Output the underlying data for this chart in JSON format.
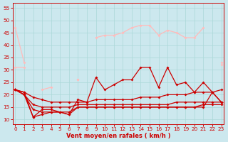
{
  "bg": "#cce8ee",
  "grid_color": "#aad8d8",
  "xlabel": "Vent moyen/en rafales ( km/h )",
  "tick_color": "#cc0000",
  "ylim": [
    8,
    57
  ],
  "yticks": [
    10,
    15,
    20,
    25,
    30,
    35,
    40,
    45,
    50,
    55
  ],
  "xlim": [
    -0.3,
    23.3
  ],
  "xticks": [
    0,
    1,
    2,
    3,
    4,
    5,
    6,
    7,
    8,
    9,
    10,
    11,
    12,
    13,
    14,
    15,
    16,
    17,
    18,
    19,
    20,
    21,
    22,
    23
  ],
  "pink_top_x": [
    0,
    1,
    2,
    3,
    4,
    5,
    6,
    7,
    8,
    9,
    10,
    11,
    12,
    13,
    14,
    15,
    16,
    17,
    18,
    19,
    20,
    21,
    22,
    23
  ],
  "pink_top_y": [
    47,
    33,
    null,
    null,
    null,
    null,
    null,
    null,
    null,
    null,
    null,
    null,
    null,
    null,
    null,
    null,
    null,
    null,
    null,
    null,
    null,
    null,
    null,
    null
  ],
  "pink_band_top_x": [
    0,
    1,
    2,
    3,
    4,
    5,
    6,
    7,
    8,
    9,
    10,
    11,
    12,
    13,
    14,
    15,
    16,
    17,
    18,
    19,
    20,
    21,
    22,
    23
  ],
  "pink_band_top_y": [
    31,
    31,
    null,
    null,
    null,
    null,
    null,
    26,
    null,
    43,
    44,
    44,
    45,
    47,
    48,
    48,
    44,
    46,
    45,
    43,
    43,
    47,
    null,
    33
  ],
  "pink_band_lower_x": [
    0,
    1,
    2,
    3,
    4,
    5,
    6,
    7,
    8,
    9,
    10,
    11,
    12,
    13,
    14,
    15,
    16,
    17,
    18,
    19,
    20,
    21,
    22,
    23
  ],
  "pink_band_lower_y": [
    22,
    21,
    null,
    null,
    null,
    null,
    null,
    null,
    null,
    null,
    null,
    null,
    null,
    null,
    null,
    null,
    null,
    null,
    null,
    null,
    null,
    null,
    null,
    32
  ],
  "pink_mid_x": [
    0,
    1,
    2,
    3,
    4,
    5,
    6,
    7,
    8,
    9,
    10,
    11,
    12,
    13,
    14,
    15,
    16,
    17,
    18,
    19,
    20,
    21,
    22,
    23
  ],
  "pink_mid_y": [
    22,
    21,
    null,
    22,
    23,
    null,
    null,
    26,
    null,
    null,
    null,
    null,
    null,
    null,
    null,
    null,
    null,
    null,
    null,
    null,
    null,
    null,
    null,
    null
  ],
  "red_jagged_x": [
    0,
    1,
    2,
    3,
    4,
    5,
    6,
    7,
    8,
    9,
    10,
    11,
    12,
    13,
    14,
    15,
    16,
    17,
    18,
    19,
    20,
    21,
    22,
    23
  ],
  "red_jagged_y": [
    22,
    21,
    11,
    14,
    14,
    13,
    12,
    18,
    17,
    27,
    22,
    24,
    26,
    26,
    31,
    31,
    23,
    31,
    24,
    25,
    21,
    25,
    21,
    17
  ],
  "red_rise1_x": [
    0,
    1,
    2,
    3,
    4,
    5,
    6,
    7,
    8,
    9,
    10,
    11,
    12,
    13,
    14,
    15,
    16,
    17,
    18,
    19,
    20,
    21,
    22,
    23
  ],
  "red_rise1_y": [
    22,
    21,
    19,
    18,
    17,
    17,
    17,
    17,
    17,
    18,
    18,
    18,
    18,
    18,
    19,
    19,
    19,
    20,
    20,
    20,
    21,
    21,
    21,
    22
  ],
  "red_rise2_x": [
    0,
    1,
    2,
    3,
    4,
    5,
    6,
    7,
    8,
    9,
    10,
    11,
    12,
    13,
    14,
    15,
    16,
    17,
    18,
    19,
    20,
    21,
    22,
    23
  ],
  "red_rise2_y": [
    22,
    20,
    16,
    15,
    15,
    15,
    15,
    16,
    16,
    16,
    16,
    16,
    16,
    16,
    16,
    16,
    16,
    16,
    17,
    17,
    17,
    17,
    17,
    17
  ],
  "red_flat_x": [
    0,
    1,
    2,
    3,
    4,
    5,
    6,
    7,
    8,
    9,
    10,
    11,
    12,
    13,
    14,
    15,
    16,
    17,
    18,
    19,
    20,
    21,
    22,
    23
  ],
  "red_flat_y": [
    22,
    20,
    14,
    13,
    13,
    13,
    13,
    15,
    15,
    15,
    15,
    15,
    15,
    15,
    15,
    15,
    15,
    15,
    15,
    15,
    15,
    16,
    16,
    16
  ],
  "red_low_x": [
    0,
    1,
    2,
    3,
    4,
    5,
    6,
    7,
    8,
    9,
    10,
    11,
    12,
    13,
    14,
    15,
    16,
    17,
    18,
    19,
    20,
    21,
    22,
    23
  ],
  "red_low_y": [
    22,
    20,
    11,
    12,
    13,
    13,
    12,
    15,
    15,
    15,
    15,
    15,
    15,
    15,
    15,
    15,
    15,
    15,
    15,
    15,
    15,
    15,
    21,
    17
  ]
}
